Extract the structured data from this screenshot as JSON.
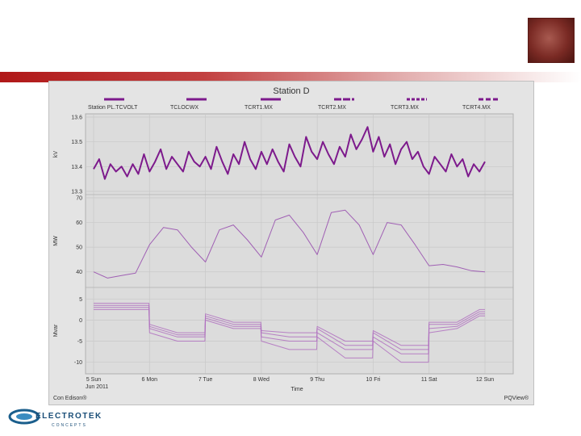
{
  "chart_data": {
    "type": "line",
    "title": "Station D",
    "source_label": "Con Edison®",
    "software_label": "PQView®",
    "legend": {
      "placement": "top",
      "entries": [
        "Station PL.TCVOLT",
        "TCLOCWX",
        "TCRT1.MX",
        "TCRT2.MX",
        "TCRT3.MX",
        "TCRT4.MX"
      ]
    },
    "xlabel": "Time",
    "date_caption": "Jun 2011",
    "x_ticks": [
      "5 Sun",
      "6 Mon",
      "7 Tue",
      "8 Wed",
      "9 Thu",
      "10 Fri",
      "11 Sat",
      "12 Sun"
    ],
    "grid": true,
    "panels": [
      {
        "ylabel": "kV",
        "ylim": [
          13.3,
          13.6
        ],
        "yticks": [
          "13.6",
          "13.5",
          "13.4",
          "13.3"
        ],
        "color": "#7d1a8c",
        "series": [
          {
            "x": [
              5.0,
              5.1,
              5.2,
              5.3,
              5.4,
              5.5,
              5.6,
              5.7,
              5.8,
              5.9,
              6.0,
              6.1,
              6.2,
              6.3,
              6.4,
              6.5,
              6.6,
              6.7,
              6.8,
              6.9,
              7.0,
              7.1,
              7.2,
              7.3,
              7.4,
              7.5,
              7.6,
              7.7,
              7.8,
              7.9,
              8.0,
              8.1,
              8.2,
              8.3,
              8.4,
              8.5,
              8.6,
              8.7,
              8.8,
              8.9,
              9.0,
              9.1,
              9.2,
              9.3,
              9.4,
              9.5,
              9.6,
              9.7,
              9.8,
              9.9,
              10.0,
              10.1,
              10.2,
              10.3,
              10.4,
              10.5,
              10.6,
              10.7,
              10.8,
              10.9,
              11.0,
              11.1,
              11.2,
              11.3,
              11.4,
              11.5,
              11.6,
              11.7,
              11.8,
              11.9,
              12.0
            ],
            "values": [
              13.39,
              13.43,
              13.35,
              13.41,
              13.38,
              13.4,
              13.36,
              13.41,
              13.37,
              13.45,
              13.38,
              13.42,
              13.47,
              13.39,
              13.44,
              13.41,
              13.38,
              13.46,
              13.42,
              13.4,
              13.44,
              13.39,
              13.48,
              13.42,
              13.37,
              13.45,
              13.41,
              13.5,
              13.43,
              13.39,
              13.46,
              13.41,
              13.47,
              13.42,
              13.38,
              13.49,
              13.44,
              13.4,
              13.52,
              13.46,
              13.43,
              13.5,
              13.45,
              13.41,
              13.48,
              13.44,
              13.53,
              13.47,
              13.51,
              13.56,
              13.46,
              13.52,
              13.44,
              13.49,
              13.41,
              13.47,
              13.5,
              13.43,
              13.46,
              13.4,
              13.37,
              13.44,
              13.41,
              13.38,
              13.45,
              13.4,
              13.43,
              13.36,
              13.41,
              13.38,
              13.42
            ]
          }
        ]
      },
      {
        "ylabel": "MW",
        "ylim": [
          35,
          70
        ],
        "yticks": [
          "70",
          "60",
          "50",
          "40"
        ],
        "color": "#a060b4",
        "series": [
          {
            "x": [
              5.0,
              5.25,
              5.5,
              5.75,
              6.0,
              6.25,
              6.5,
              6.75,
              7.0,
              7.25,
              7.5,
              7.75,
              8.0,
              8.25,
              8.5,
              8.75,
              9.0,
              9.25,
              9.5,
              9.75,
              10.0,
              10.25,
              10.5,
              10.75,
              11.0,
              11.25,
              11.5,
              11.75,
              12.0
            ],
            "values": [
              40,
              37.5,
              38.5,
              39.5,
              51,
              58,
              57,
              50,
              44,
              57,
              59,
              53,
              46,
              61,
              63,
              56,
              47,
              64,
              65,
              59,
              47,
              60,
              59,
              51,
              42.5,
              43,
              42,
              40.5,
              40
            ]
          }
        ]
      },
      {
        "ylabel": "Mvar",
        "ylim": [
          -12,
          7
        ],
        "yticks": [
          "5",
          "0",
          "-5",
          "-10"
        ],
        "color": "#b070c0",
        "series": [
          {
            "x": [
              5.0,
              5.99,
              6.0,
              6.5,
              6.99,
              7.0,
              7.5,
              7.99,
              8.0,
              8.5,
              8.99,
              9.0,
              9.5,
              9.99,
              10.0,
              10.5,
              10.99,
              11.0,
              11.5,
              11.9,
              12.0
            ],
            "values": [
              3.5,
              3.5,
              -1.5,
              -3.5,
              -3.5,
              1,
              -1,
              -1,
              -3,
              -4,
              -4,
              -2,
              -6,
              -6,
              -3,
              -7,
              -7,
              -1,
              -1,
              2,
              2
            ]
          },
          {
            "x": [
              5.0,
              5.99,
              6.0,
              6.5,
              6.99,
              7.0,
              7.5,
              7.99,
              8.0,
              8.5,
              8.99,
              9.0,
              9.5,
              9.99,
              10.0,
              10.5,
              10.99,
              11.0,
              11.5,
              11.9,
              12.0
            ],
            "values": [
              3,
              3,
              -2,
              -4,
              -4,
              0.5,
              -1.5,
              -1.5,
              -4,
              -5,
              -5,
              -3,
              -7,
              -7,
              -4,
              -8,
              -8,
              -2,
              -1.5,
              1.5,
              1.5
            ]
          },
          {
            "x": [
              5.0,
              5.99,
              6.0,
              6.5,
              6.99,
              7.0,
              7.5,
              7.99,
              8.0,
              8.5,
              8.99,
              9.0,
              9.5,
              9.99,
              10.0,
              10.5,
              10.99,
              11.0,
              11.5,
              11.9,
              12.0
            ],
            "values": [
              2.5,
              2.5,
              -3,
              -5,
              -5,
              0,
              -2,
              -2,
              -5,
              -7,
              -7,
              -4,
              -9,
              -9,
              -5,
              -10,
              -10,
              -3,
              -2,
              1,
              1
            ]
          },
          {
            "x": [
              5.0,
              5.99,
              6.0,
              6.5,
              6.99,
              7.0,
              7.5,
              7.99,
              8.0,
              8.5,
              8.99,
              9.0,
              9.5,
              9.99,
              10.0,
              10.5,
              10.99,
              11.0,
              11.5,
              11.9,
              12.0
            ],
            "values": [
              4,
              4,
              -1,
              -3,
              -3,
              1.5,
              -0.5,
              -0.5,
              -2.5,
              -3,
              -3,
              -1.5,
              -5,
              -5,
              -2.5,
              -6,
              -6,
              -0.5,
              -0.5,
              2.5,
              2.5
            ]
          }
        ]
      }
    ]
  },
  "footer_logo": {
    "name": "ELECTROTEK",
    "tagline": "CONCEPTS"
  }
}
